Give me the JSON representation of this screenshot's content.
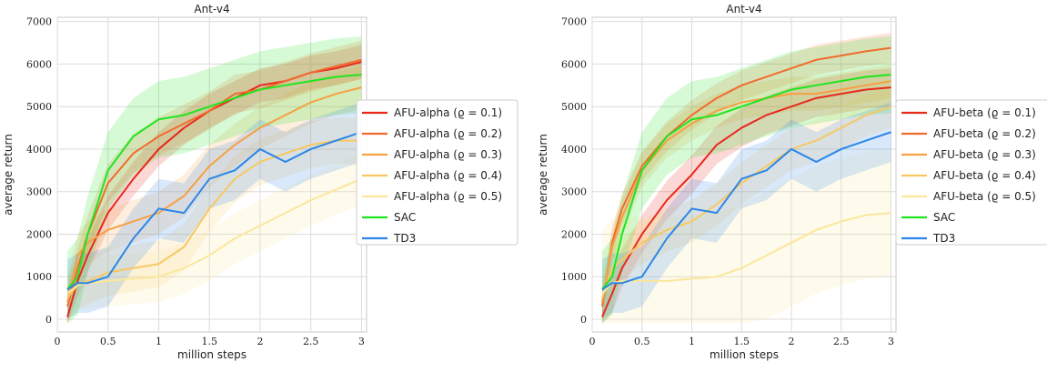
{
  "chart_data": [
    {
      "type": "line",
      "title": "Ant-v4",
      "xlabel": "million steps",
      "ylabel": "average return",
      "xlim": [
        0,
        3.05
      ],
      "ylim": [
        -300,
        7100
      ],
      "xticks": [
        "0",
        "0.5",
        "1",
        "1.5",
        "2",
        "2.5",
        "3"
      ],
      "yticks": [
        "0",
        "1000",
        "2000",
        "3000",
        "4000",
        "5000",
        "6000",
        "7000"
      ],
      "grid": true,
      "legend_position": "right",
      "x": [
        0.1,
        0.2,
        0.3,
        0.5,
        0.75,
        1.0,
        1.25,
        1.5,
        1.75,
        2.0,
        2.25,
        2.5,
        2.75,
        3.0
      ],
      "series": [
        {
          "name": "AFU-alpha (ϱ = 0.1)",
          "color": "#e8281b",
          "values": [
            50,
            900,
            1500,
            2500,
            3300,
            4000,
            4500,
            4900,
            5200,
            5500,
            5600,
            5800,
            5900,
            6050
          ],
          "band": 400
        },
        {
          "name": "AFU-alpha (ϱ = 0.2)",
          "color": "#f26b2e",
          "values": [
            300,
            1200,
            2000,
            3200,
            3900,
            4300,
            4600,
            4900,
            5300,
            5400,
            5600,
            5800,
            5950,
            6100
          ],
          "band": 450
        },
        {
          "name": "AFU-alpha (ϱ = 0.3)",
          "color": "#f6a042",
          "values": [
            400,
            1500,
            1800,
            2100,
            2300,
            2500,
            2900,
            3600,
            4100,
            4500,
            4800,
            5100,
            5300,
            5450
          ],
          "band": 500
        },
        {
          "name": "AFU-alpha (ϱ = 0.4)",
          "color": "#f7c862",
          "values": [
            500,
            800,
            900,
            1100,
            1200,
            1300,
            1700,
            2600,
            3300,
            3700,
            3900,
            4100,
            4200,
            4200
          ],
          "band": 550
        },
        {
          "name": "AFU-alpha (ϱ = 0.5)",
          "color": "#fbe79a",
          "values": [
            600,
            800,
            850,
            900,
            950,
            1000,
            1200,
            1500,
            1900,
            2200,
            2500,
            2800,
            3050,
            3300
          ],
          "band": 600
        },
        {
          "name": "SAC",
          "color": "#1ee61e",
          "values": [
            700,
            1000,
            2000,
            3500,
            4300,
            4700,
            4800,
            5000,
            5200,
            5400,
            5500,
            5600,
            5700,
            5750
          ],
          "band": 900
        },
        {
          "name": "TD3",
          "color": "#2b86e8",
          "values": [
            700,
            850,
            850,
            1000,
            1900,
            2600,
            2500,
            3300,
            3500,
            4000,
            3700,
            4000,
            4200,
            4400
          ],
          "band": 700
        }
      ]
    },
    {
      "type": "line",
      "title": "Ant-v4",
      "xlabel": "million steps",
      "ylabel": "average return",
      "xlim": [
        0,
        3.05
      ],
      "ylim": [
        -300,
        7100
      ],
      "xticks": [
        "0",
        "0.5",
        "1",
        "1.5",
        "2",
        "2.5",
        "3"
      ],
      "yticks": [
        "0",
        "1000",
        "2000",
        "3000",
        "4000",
        "5000",
        "6000",
        "7000"
      ],
      "grid": true,
      "legend_position": "right",
      "x": [
        0.1,
        0.2,
        0.3,
        0.5,
        0.75,
        1.0,
        1.25,
        1.5,
        1.75,
        2.0,
        2.25,
        2.5,
        2.75,
        3.0
      ],
      "series": [
        {
          "name": "AFU-beta (ϱ = 0.1)",
          "color": "#e8281b",
          "values": [
            50,
            600,
            1200,
            2000,
            2800,
            3400,
            4100,
            4500,
            4800,
            5000,
            5200,
            5300,
            5400,
            5450
          ],
          "band": 450
        },
        {
          "name": "AFU-beta (ϱ = 0.2)",
          "color": "#f26b2e",
          "values": [
            300,
            1800,
            2600,
            3600,
            4300,
            4800,
            5200,
            5500,
            5700,
            5900,
            6100,
            6200,
            6300,
            6380
          ],
          "band": 350
        },
        {
          "name": "AFU-beta (ϱ = 0.3)",
          "color": "#f6a042",
          "values": [
            400,
            1700,
            2400,
            3500,
            4200,
            4600,
            4900,
            5100,
            5200,
            5300,
            5300,
            5400,
            5500,
            5600
          ],
          "band": 400
        },
        {
          "name": "AFU-beta (ϱ = 0.4)",
          "color": "#f7c862",
          "values": [
            500,
            1200,
            1400,
            1800,
            2100,
            2300,
            2700,
            3200,
            3600,
            4000,
            4200,
            4500,
            4800,
            5000
          ],
          "band": 500
        },
        {
          "name": "AFU-beta (ϱ = 0.5)",
          "color": "#fbe79a",
          "values": [
            600,
            850,
            900,
            900,
            900,
            950,
            1000,
            1200,
            1500,
            1800,
            2100,
            2300,
            2450,
            2500
          ],
          "band": 1500
        },
        {
          "name": "SAC",
          "color": "#1ee61e",
          "values": [
            700,
            1000,
            2000,
            3500,
            4300,
            4700,
            4800,
            5000,
            5200,
            5400,
            5500,
            5600,
            5700,
            5750
          ],
          "band": 900
        },
        {
          "name": "TD3",
          "color": "#2b86e8",
          "values": [
            700,
            850,
            850,
            1000,
            1900,
            2600,
            2500,
            3300,
            3500,
            4000,
            3700,
            4000,
            4200,
            4400
          ],
          "band": 700
        }
      ]
    }
  ]
}
